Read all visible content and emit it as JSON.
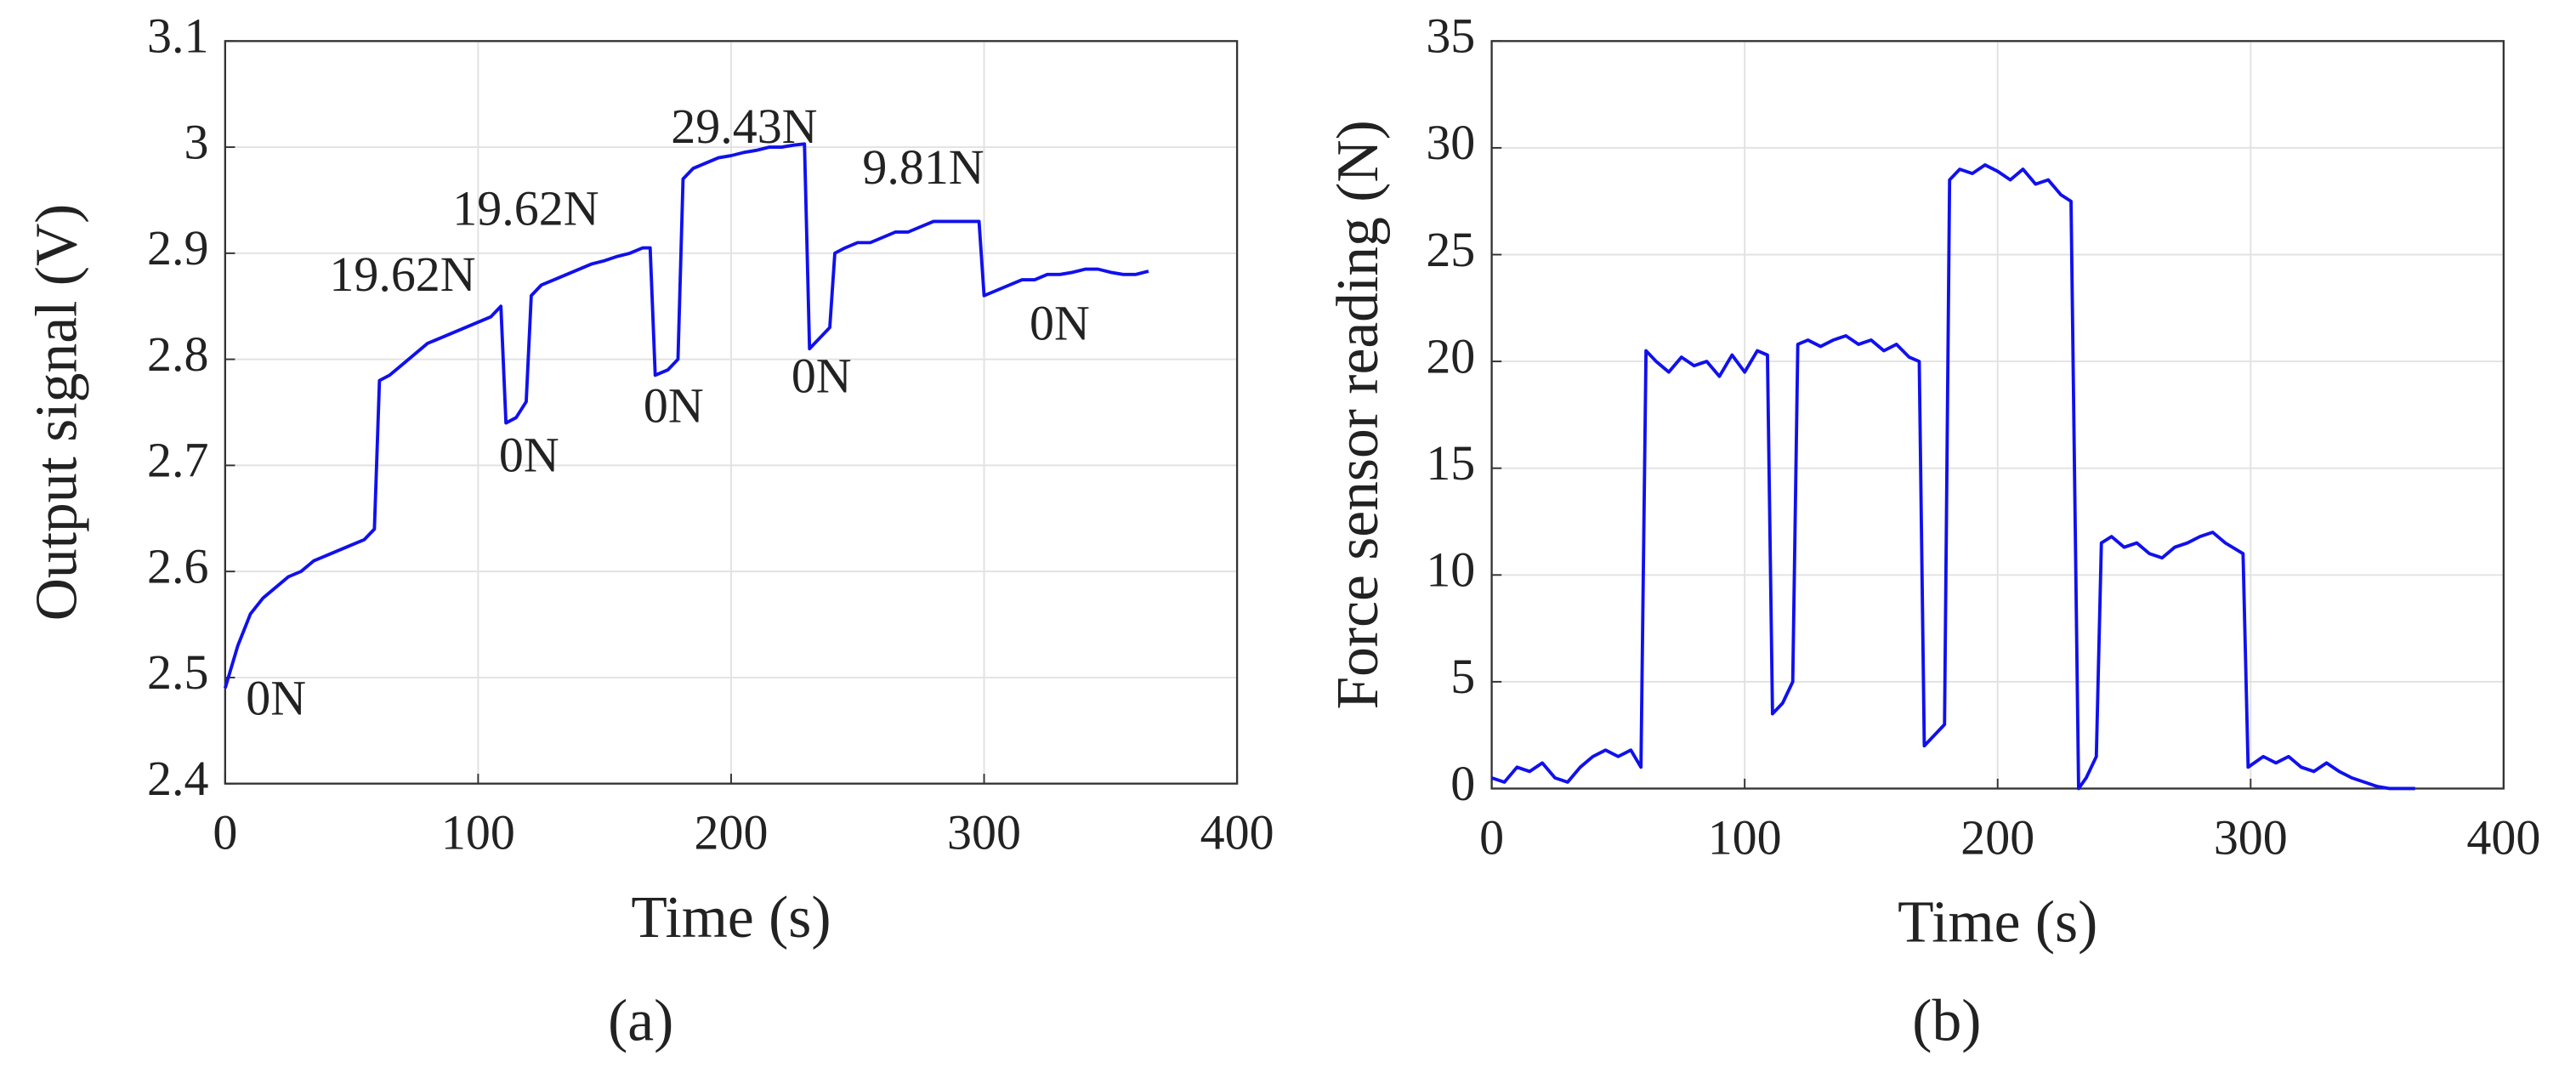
{
  "chart_data": [
    {
      "type": "line",
      "xlabel": "Time (s)",
      "ylabel": "Output signal (V)",
      "caption": "(a)",
      "xlim": [
        0,
        400
      ],
      "xticks": [
        0,
        100,
        200,
        300,
        400
      ],
      "ylim": [
        2.4,
        3.1
      ],
      "yticks": [
        {
          "value": 2.4,
          "label": "2.4"
        },
        2.5,
        2.6,
        2.7,
        2.8,
        2.9,
        {
          "value": 3,
          "label": "3"
        },
        3.1
      ],
      "grid": true,
      "annotations": [
        "0N",
        "19.62N",
        "19.62N",
        "0N",
        "29.43N",
        "0N",
        "0N",
        "9.81N",
        "0N"
      ],
      "x": [
        0,
        5,
        10,
        15,
        20,
        25,
        30,
        35,
        40,
        45,
        50,
        55,
        59,
        61,
        65,
        70,
        75,
        80,
        85,
        90,
        95,
        100,
        105,
        109,
        111,
        115,
        119,
        121,
        125,
        130,
        135,
        140,
        145,
        150,
        155,
        160,
        165,
        168,
        170,
        175,
        179,
        181,
        185,
        190,
        195,
        200,
        205,
        210,
        215,
        220,
        225,
        229,
        231,
        235,
        239,
        241,
        245,
        250,
        255,
        260,
        265,
        270,
        275,
        280,
        285,
        290,
        298,
        300,
        305,
        310,
        315,
        320,
        325,
        330,
        335,
        340,
        345,
        350,
        355,
        360,
        365
      ],
      "series": [
        {
          "color": "#1010ee",
          "values": [
            2.49,
            2.53,
            2.56,
            2.575,
            2.585,
            2.595,
            2.6,
            2.61,
            2.615,
            2.62,
            2.625,
            2.63,
            2.64,
            2.78,
            2.785,
            2.795,
            2.805,
            2.815,
            2.82,
            2.825,
            2.83,
            2.835,
            2.84,
            2.85,
            2.74,
            2.745,
            2.76,
            2.86,
            2.87,
            2.875,
            2.88,
            2.885,
            2.89,
            2.893,
            2.897,
            2.9,
            2.905,
            2.905,
            2.785,
            2.79,
            2.8,
            2.97,
            2.98,
            2.985,
            2.99,
            2.992,
            2.995,
            2.997,
            3.0,
            3.0,
            3.002,
            3.003,
            2.81,
            2.82,
            2.83,
            2.9,
            2.905,
            2.91,
            2.91,
            2.915,
            2.92,
            2.92,
            2.925,
            2.93,
            2.93,
            2.93,
            2.93,
            2.86,
            2.865,
            2.87,
            2.875,
            2.875,
            2.88,
            2.88,
            2.882,
            2.885,
            2.885,
            2.882,
            2.88,
            2.88,
            2.883
          ]
        }
      ]
    },
    {
      "type": "line",
      "xlabel": "Time (s)",
      "ylabel": "Force sensor reading (N)",
      "caption": "(b)",
      "xlim": [
        0,
        400
      ],
      "xticks": [
        0,
        100,
        200,
        300,
        400
      ],
      "ylim": [
        0,
        35
      ],
      "yticks": [
        0,
        5,
        10,
        15,
        20,
        25,
        30,
        35
      ],
      "grid": true,
      "x": [
        0,
        5,
        10,
        15,
        20,
        25,
        30,
        35,
        40,
        45,
        50,
        55,
        59,
        61,
        65,
        70,
        75,
        80,
        85,
        90,
        95,
        100,
        105,
        109,
        111,
        115,
        119,
        121,
        125,
        130,
        135,
        140,
        145,
        150,
        155,
        160,
        165,
        169,
        171,
        175,
        179,
        181,
        185,
        190,
        195,
        200,
        205,
        210,
        215,
        220,
        225,
        229,
        232,
        235,
        239,
        241,
        245,
        250,
        255,
        260,
        265,
        270,
        275,
        280,
        285,
        290,
        297,
        299,
        305,
        310,
        315,
        320,
        325,
        330,
        335,
        340,
        345,
        350,
        355,
        360,
        365
      ],
      "series": [
        {
          "color": "#1010ee",
          "values": [
            0.5,
            0.3,
            1,
            0.8,
            1.2,
            0.5,
            0.3,
            1,
            1.5,
            1.8,
            1.5,
            1.8,
            1,
            20.5,
            20,
            19.5,
            20.2,
            19.8,
            20,
            19.3,
            20.3,
            19.5,
            20.5,
            20.3,
            3.5,
            4,
            5,
            20.8,
            21,
            20.7,
            21,
            21.2,
            20.8,
            21,
            20.5,
            20.8,
            20.2,
            20,
            2,
            2.5,
            3,
            28.5,
            29,
            28.8,
            29.2,
            28.9,
            28.5,
            29,
            28.3,
            28.5,
            27.8,
            27.5,
            0,
            0.5,
            1.5,
            11.5,
            11.8,
            11.3,
            11.5,
            11,
            10.8,
            11.3,
            11.5,
            11.8,
            12,
            11.5,
            11,
            1,
            1.5,
            1.2,
            1.5,
            1,
            0.8,
            1.2,
            0.8,
            0.5,
            0.3,
            0.1,
            0,
            0,
            0
          ]
        }
      ]
    }
  ]
}
